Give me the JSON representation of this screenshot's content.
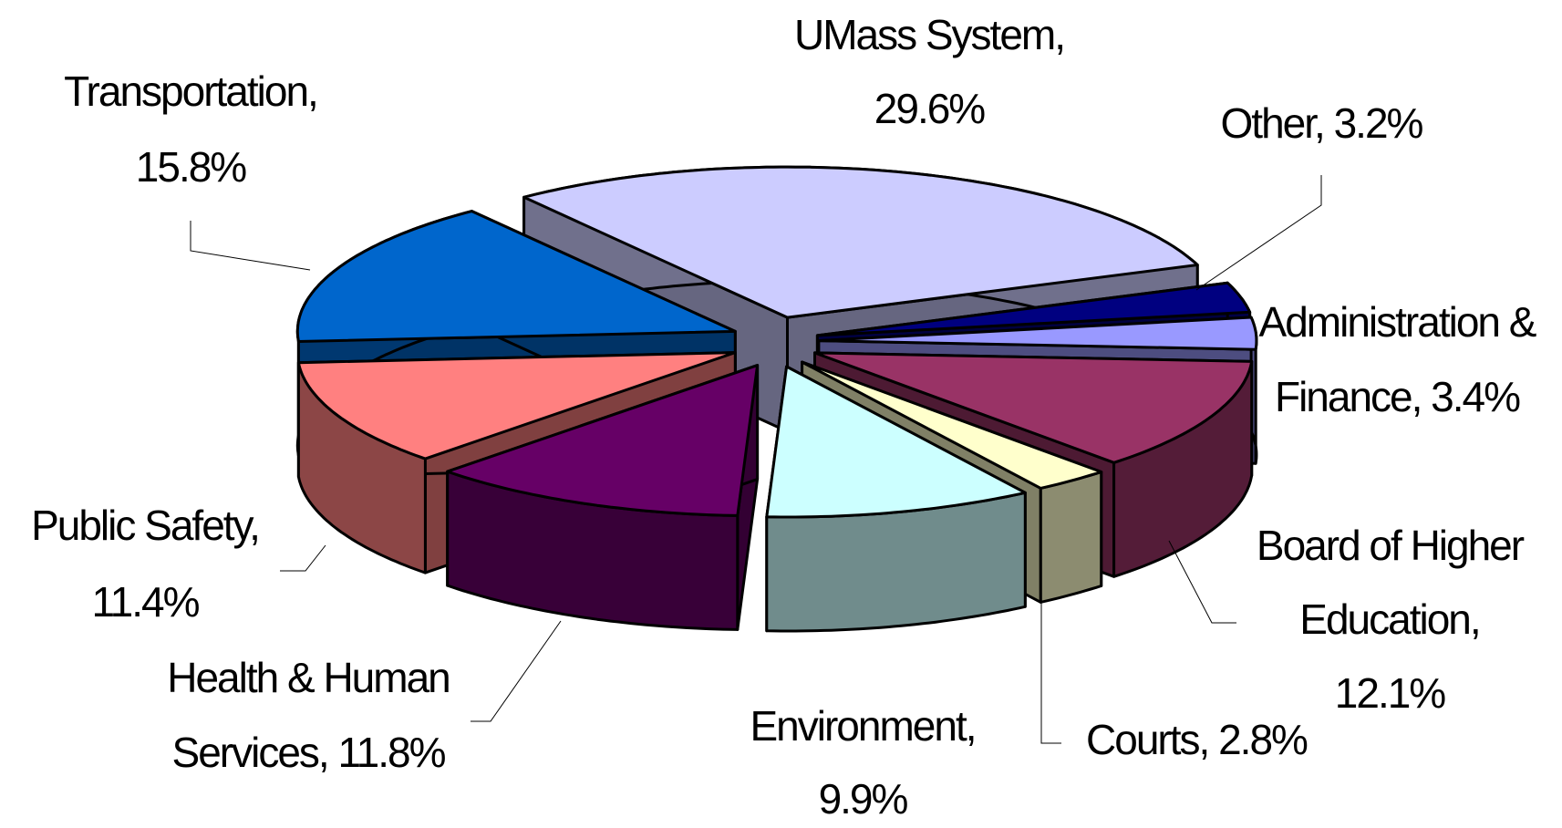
{
  "chart_data": {
    "type": "pie",
    "three_d": true,
    "exploded": true,
    "values": [
      29.6,
      3.2,
      3.4,
      12.1,
      2.8,
      9.9,
      11.8,
      11.4,
      15.8
    ],
    "value_labels": [
      [
        "UMass System,",
        "29.6%"
      ],
      [
        "Other, 3.2%"
      ],
      [
        "Administration &",
        "Finance, 3.4%"
      ],
      [
        "Board of Higher",
        "Education,",
        "12.1%"
      ],
      [
        "Courts, 2.8%"
      ],
      [
        "Environment,",
        "9.9%"
      ],
      [
        "Health & Human",
        "Services, 11.8%"
      ],
      [
        "Public Safety,",
        "11.4%"
      ],
      [
        "Transportation,",
        "15.8%"
      ]
    ],
    "colors": [
      "#ccccff",
      "#000080",
      "#9999ff",
      "#993366",
      "#ffffcc",
      "#ccffff",
      "#660066",
      "#ff8080",
      "#0066cc"
    ]
  }
}
